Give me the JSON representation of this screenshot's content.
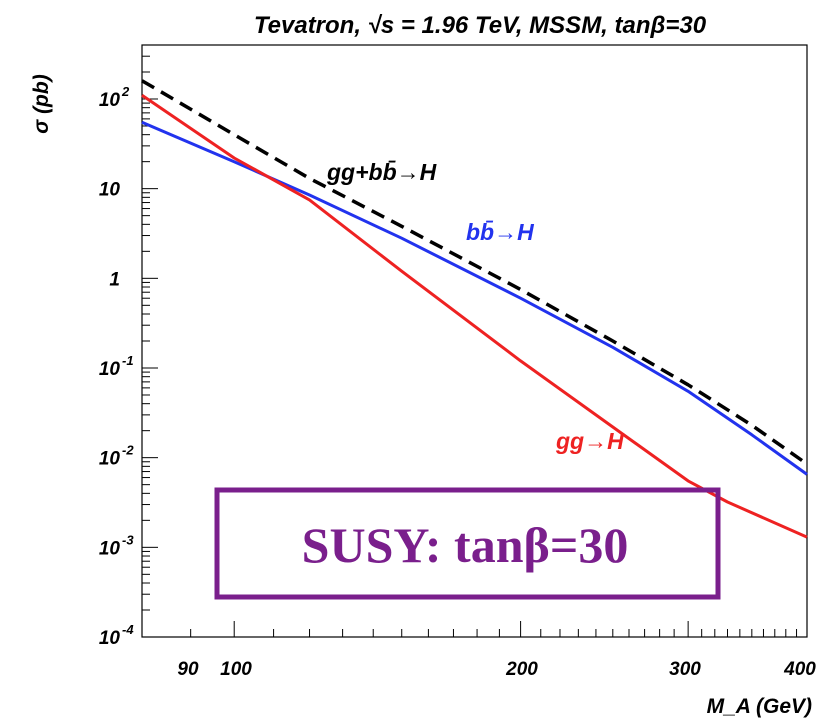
{
  "chart_data": {
    "type": "line",
    "title": "Tevatron, √s = 1.96 TeV, MSSM, tanβ=30",
    "xlabel": "M_A (GeV)",
    "ylabel": "σ (pb)",
    "xscale": "log",
    "yscale": "log",
    "xlim": [
      80,
      400
    ],
    "ylim": [
      0.0001,
      400
    ],
    "x_ticks": [
      "90",
      "100",
      "200",
      "300",
      "400"
    ],
    "y_ticks": [
      {
        "base": "10",
        "exp": "-4"
      },
      {
        "base": "10",
        "exp": "-3"
      },
      {
        "base": "10",
        "exp": "-2"
      },
      {
        "base": "10",
        "exp": "-1"
      },
      {
        "base": "1",
        "exp": ""
      },
      {
        "base": "10",
        "exp": ""
      },
      {
        "base": "10",
        "exp": "2"
      }
    ],
    "series": [
      {
        "name": "gg+bb̄→H",
        "color": "#000000",
        "style": "dashed",
        "x": [
          80,
          100,
          120,
          150,
          200,
          250,
          300,
          350,
          400
        ],
        "y": [
          160,
          40,
          13,
          3.8,
          0.75,
          0.2,
          0.065,
          0.023,
          0.0085
        ]
      },
      {
        "name": "bb̄→H",
        "color": "#2233ee",
        "style": "solid",
        "x": [
          80,
          100,
          120,
          150,
          200,
          250,
          300,
          350,
          400
        ],
        "y": [
          55,
          20,
          8.5,
          2.8,
          0.6,
          0.17,
          0.055,
          0.018,
          0.0065
        ]
      },
      {
        "name": "gg→H",
        "color": "#ee2222",
        "style": "solid",
        "x": [
          80,
          100,
          120,
          150,
          200,
          250,
          300,
          330,
          400
        ],
        "y": [
          110,
          22,
          7.5,
          1.2,
          0.12,
          0.022,
          0.0055,
          0.0032,
          0.0013
        ]
      }
    ],
    "annotation": "SUSY: tanβ=30",
    "annotation_color": "#7a1f8c"
  }
}
